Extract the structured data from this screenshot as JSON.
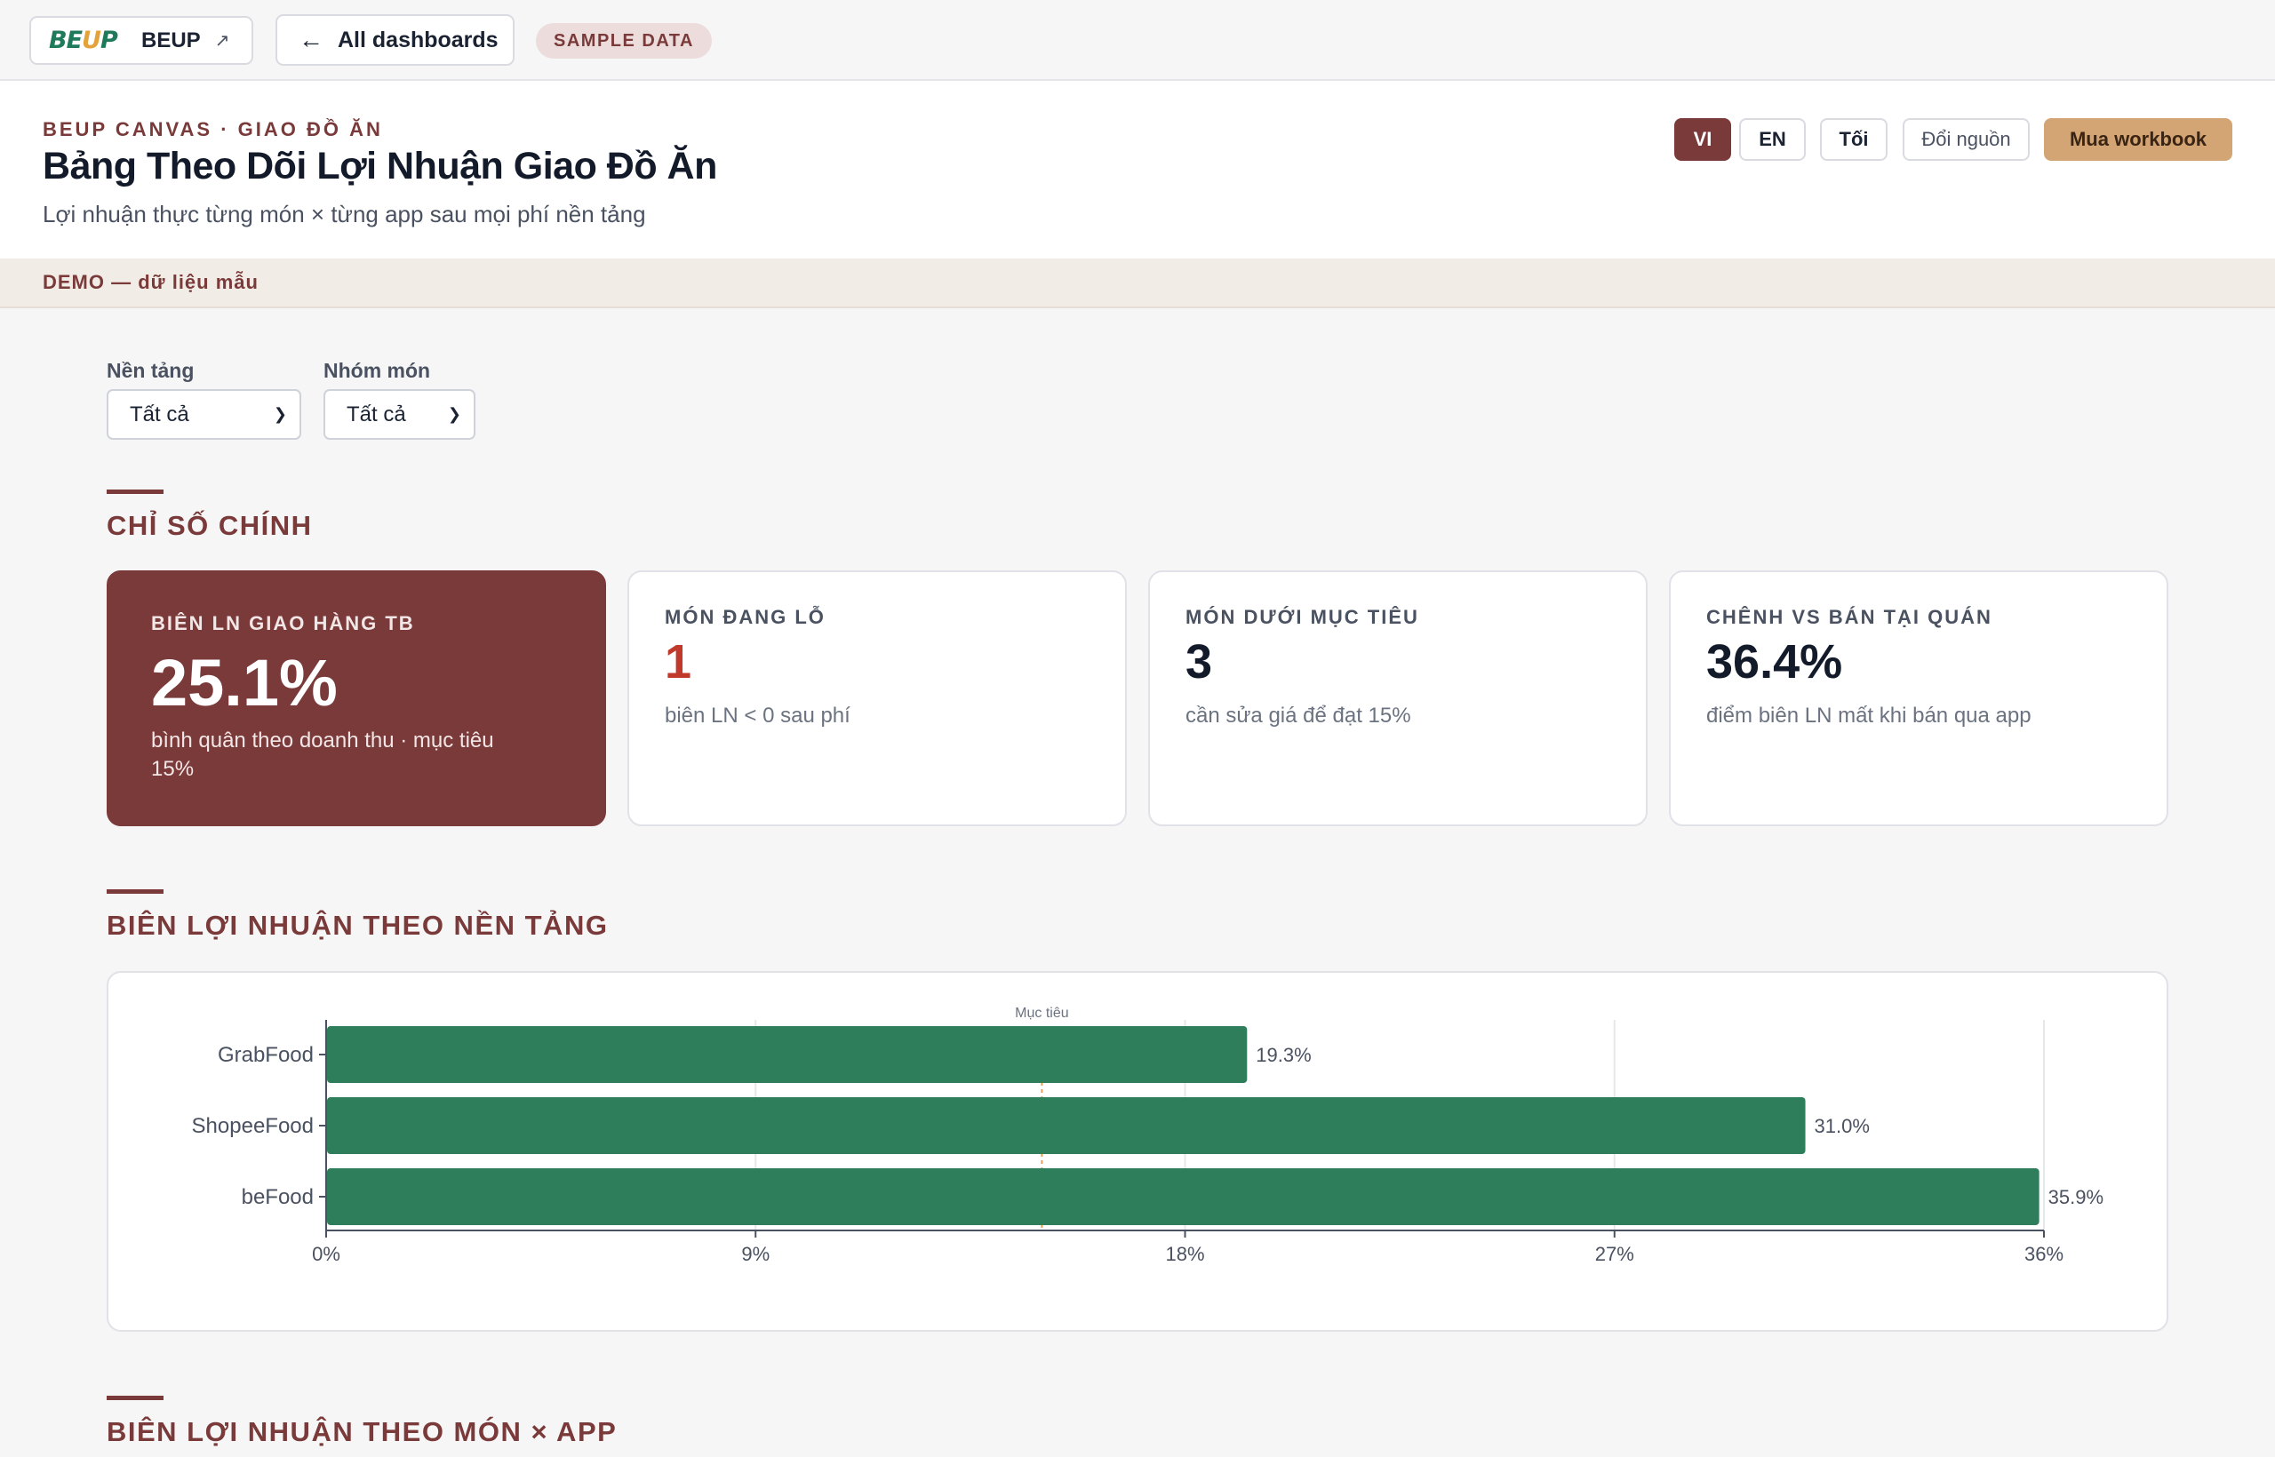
{
  "topbar": {
    "brand_logo": "BEUP",
    "brand_name": "BEUP",
    "external_icon": "arrow-up-right-icon",
    "back_label": "All dashboards",
    "back_icon": "arrow-left-icon",
    "sample_badge": "SAMPLE DATA"
  },
  "header": {
    "eyebrow": "BEUP CANVAS · GIAO ĐỒ ĂN",
    "title": "Bảng Theo Dõi Lợi Nhuận Giao Đồ Ăn",
    "subtitle": "Lợi nhuận thực từng món × từng app sau mọi phí nền tảng",
    "buttons": {
      "vi": "VI",
      "en": "EN",
      "dark": "Tối",
      "source": "Đổi nguồn",
      "buy": "Mua workbook"
    }
  },
  "demo_strip": "DEMO — dữ liệu mẫu",
  "filters": {
    "platform_label": "Nền tảng",
    "platform_value": "Tất cả",
    "group_label": "Nhóm món",
    "group_value": "Tất cả"
  },
  "kpi_section": {
    "title": "CHỈ SỐ CHÍNH",
    "cards": [
      {
        "label": "BIÊN LN GIAO HÀNG TB",
        "value": "25.1%",
        "sub": "bình quân theo doanh thu · mục tiêu 15%"
      },
      {
        "label": "MÓN ĐANG LỖ",
        "value": "1",
        "sub": "biên LN < 0 sau phí"
      },
      {
        "label": "MÓN DƯỚI MỤC TIÊU",
        "value": "3",
        "sub": "cần sửa giá để đạt 15%"
      },
      {
        "label": "CHÊNH VS BÁN TẠI QUÁN",
        "value": "36.4%",
        "sub": "điểm biên LN mất khi bán qua app"
      }
    ]
  },
  "platform_section": {
    "title": "BIÊN LỢI NHUẬN THEO NỀN TẢNG"
  },
  "item_section": {
    "title": "BIÊN LỢI NHUẬN THEO MÓN × APP"
  },
  "colors": {
    "accent": "#7a3a3a",
    "bar": "#2e7d5b",
    "target_line": "#e0a060",
    "buy": "#d4a574"
  },
  "chart_data": {
    "type": "bar",
    "orientation": "horizontal",
    "categories": [
      "GrabFood",
      "ShopeeFood",
      "beFood"
    ],
    "values": [
      19.3,
      31.0,
      35.9
    ],
    "value_labels": [
      "19.3%",
      "31.0%",
      "35.9%"
    ],
    "xlim": [
      0,
      36
    ],
    "x_ticks": [
      "0%",
      "9%",
      "18%",
      "27%",
      "36%"
    ],
    "target": {
      "value": 15,
      "label": "Mục tiêu"
    },
    "grid": true
  }
}
